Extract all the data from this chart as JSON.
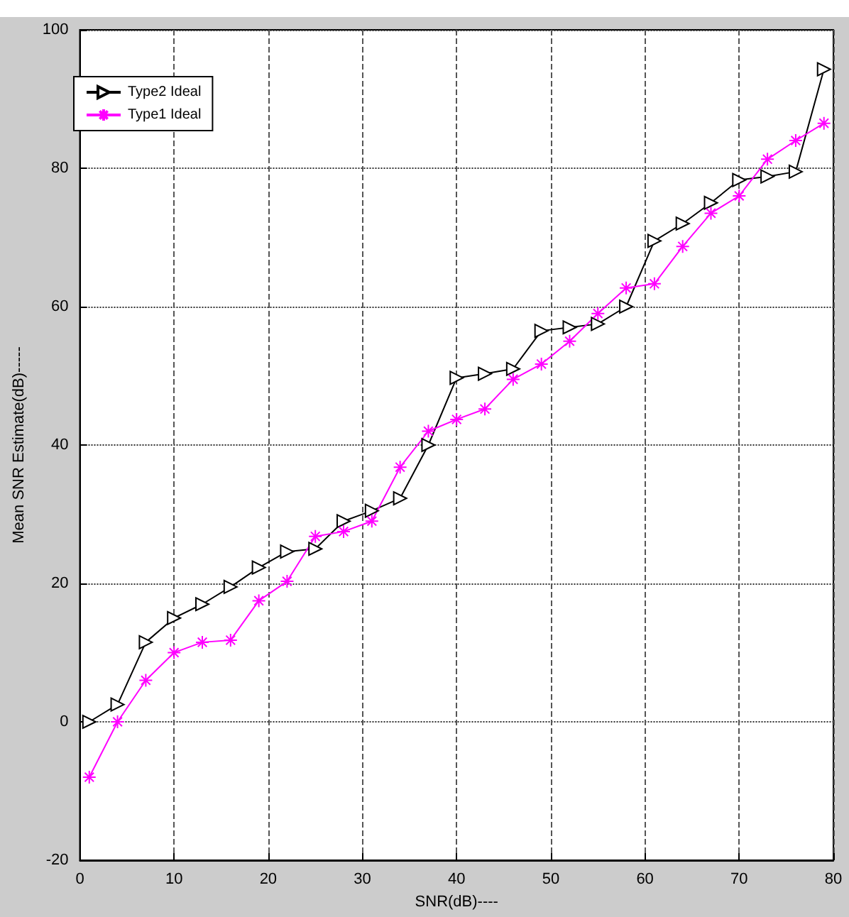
{
  "chart_data": {
    "type": "line",
    "xlabel": "SNR(dB)----",
    "ylabel": "Mean SNR Estimate(dB)-----",
    "x": [
      1,
      4,
      7,
      10,
      13,
      16,
      19,
      22,
      25,
      28,
      31,
      34,
      37,
      40,
      43,
      46,
      49,
      52,
      55,
      58,
      61,
      64,
      67,
      70,
      73,
      76,
      79
    ],
    "series": [
      {
        "name": "Type2 Ideal",
        "color": "#000000",
        "marker": "triangle",
        "values": [
          0,
          2.5,
          11.5,
          15,
          17,
          19.5,
          22.3,
          24.6,
          25,
          29,
          30.5,
          32.3,
          40,
          49.7,
          50.3,
          51,
          56.5,
          57,
          57.5,
          60,
          69.5,
          72,
          75,
          78.3,
          78.8,
          79.5,
          94.3
        ]
      },
      {
        "name": "Type1 Ideal",
        "color": "#ff00ff",
        "marker": "cross",
        "values": [
          -8,
          0,
          6,
          10,
          11.5,
          11.8,
          17.5,
          20.3,
          26.8,
          27.5,
          29,
          36.8,
          42,
          43.7,
          45.2,
          49.5,
          51.7,
          55,
          59,
          62.7,
          63.3,
          68.7,
          73.5,
          76,
          81.3,
          84,
          86.5
        ]
      }
    ],
    "xlim": [
      0,
      80
    ],
    "xticks": [
      0,
      10,
      20,
      30,
      40,
      50,
      60,
      70,
      80
    ],
    "ylim": [
      -20,
      100
    ],
    "yticks": [
      -20,
      0,
      20,
      40,
      60,
      80,
      100
    ],
    "grid": true,
    "legend": "top left"
  }
}
